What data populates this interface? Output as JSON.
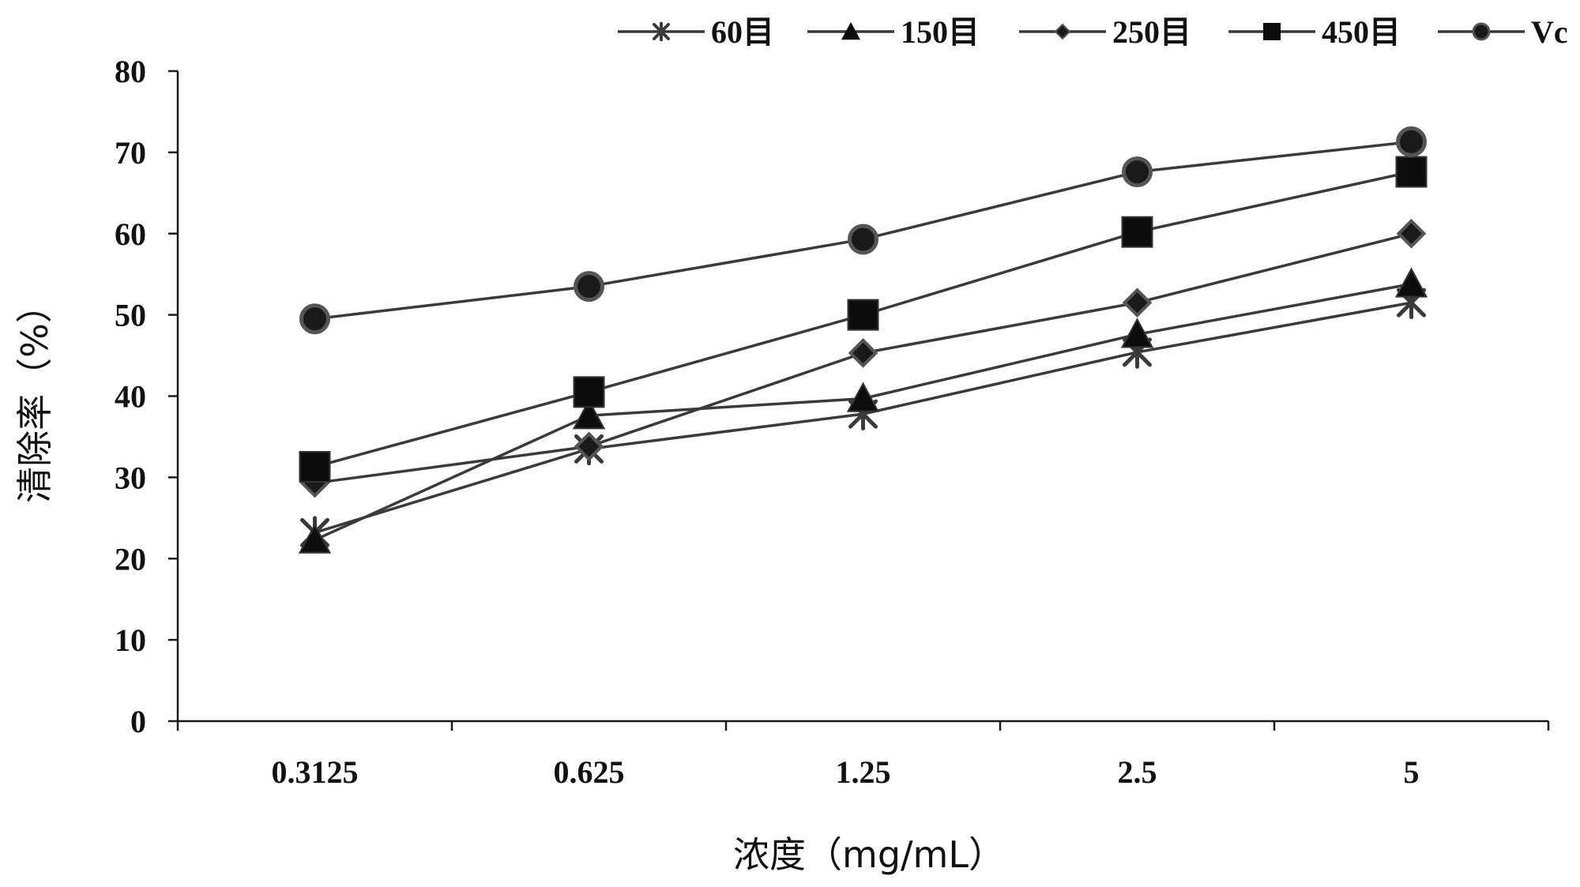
{
  "chart_data": {
    "type": "line",
    "title": "",
    "xlabel": "浓度（mg/mL）",
    "ylabel": "清除率（%）",
    "categories": [
      "0.3125",
      "0.625",
      "1.25",
      "2.5",
      "5"
    ],
    "ylim": [
      0,
      80
    ],
    "yticks": [
      0,
      10,
      20,
      30,
      40,
      50,
      60,
      70,
      80
    ],
    "grid": false,
    "legend_position": "top",
    "series": [
      {
        "name": "60目",
        "marker": "asterisk",
        "values": [
          23.2,
          33.5,
          37.8,
          45.4,
          51.5
        ]
      },
      {
        "name": "150目",
        "marker": "triangle",
        "values": [
          22.3,
          37.6,
          39.7,
          47.6,
          53.8
        ]
      },
      {
        "name": "250目",
        "marker": "diamond",
        "values": [
          29.3,
          33.8,
          45.3,
          51.5,
          60.0
        ]
      },
      {
        "name": "450目",
        "marker": "square",
        "values": [
          31.3,
          40.5,
          50.0,
          60.2,
          67.6
        ]
      },
      {
        "name": "Vc",
        "marker": "circle",
        "values": [
          49.5,
          53.5,
          59.3,
          67.6,
          71.3
        ]
      }
    ]
  }
}
